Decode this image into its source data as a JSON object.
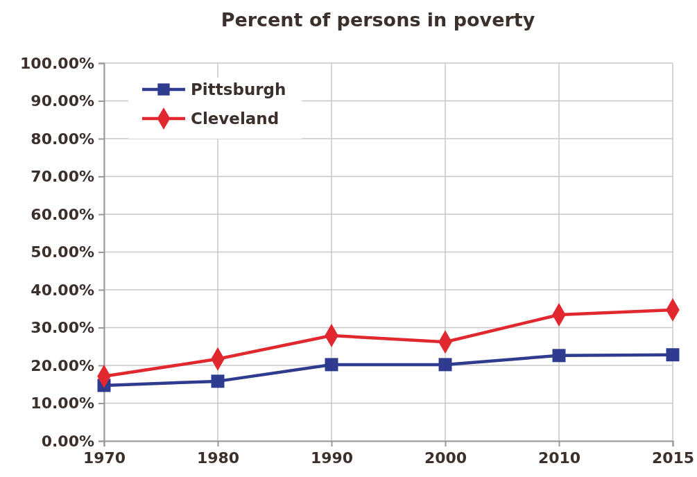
{
  "chart_data": {
    "type": "line",
    "title": "Percent of persons in poverty",
    "categories": [
      "1970",
      "1980",
      "1990",
      "2000",
      "2010",
      "2015"
    ],
    "series": [
      {
        "name": "Pittsburgh",
        "color": "#2e3b8f",
        "values": [
          14.7,
          15.8,
          20.2,
          20.2,
          22.6,
          22.8
        ],
        "marker": "square"
      },
      {
        "name": "Cleveland",
        "color": "#e0282e",
        "values": [
          17.1,
          21.7,
          27.9,
          26.2,
          33.4,
          34.7
        ],
        "marker": "diamond"
      }
    ],
    "ylim": [
      0,
      100
    ],
    "yticks": [
      {
        "value": 0,
        "label": "0.00%"
      },
      {
        "value": 10,
        "label": "10.00%"
      },
      {
        "value": 20,
        "label": "20.00%"
      },
      {
        "value": 30,
        "label": "30.00%"
      },
      {
        "value": 40,
        "label": "40.00%"
      },
      {
        "value": 50,
        "label": "50.00%"
      },
      {
        "value": 60,
        "label": "60.00%"
      },
      {
        "value": 70,
        "label": "70.00%"
      },
      {
        "value": 80,
        "label": "80.00%"
      },
      {
        "value": 90,
        "label": "90.00%"
      },
      {
        "value": 100,
        "label": "100.00%"
      }
    ],
    "grid": true,
    "legend": "top left",
    "line_style": "solid"
  }
}
